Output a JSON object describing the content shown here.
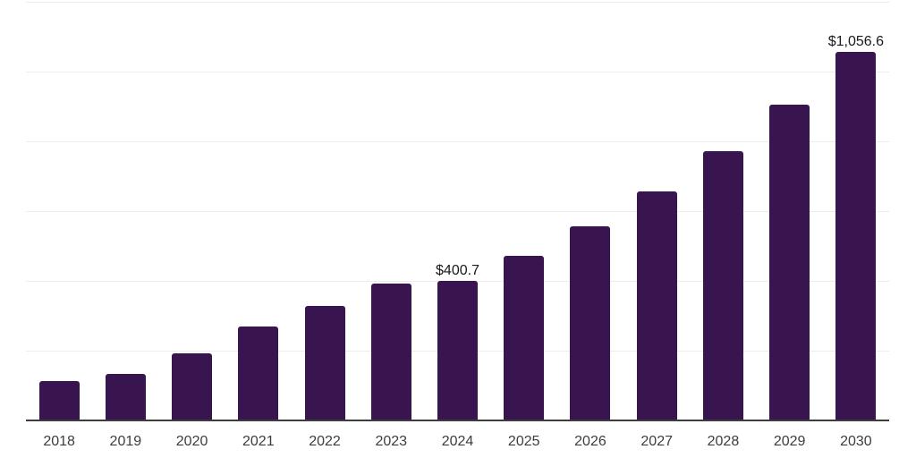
{
  "chart_data": {
    "type": "bar",
    "title": "",
    "xlabel": "",
    "ylabel": "",
    "categories": [
      "2018",
      "2019",
      "2020",
      "2021",
      "2022",
      "2023",
      "2024",
      "2025",
      "2026",
      "2027",
      "2028",
      "2029",
      "2030"
    ],
    "values": [
      112.5,
      133.0,
      191.8,
      268.5,
      327.4,
      391.3,
      400.7,
      473.1,
      557.5,
      657.3,
      772.4,
      905.4,
      1056.6
    ],
    "data_labels": {
      "2024": "$400.7",
      "2030": "$1,056.6"
    },
    "ylim": [
      0,
      1200
    ],
    "gridline_values": [
      200,
      400,
      600,
      800,
      1000,
      1200
    ],
    "grid": "horizontal-only",
    "legend_position": "none",
    "colors": {
      "bar": "#38154f",
      "gridline": "#ededed",
      "axis_line": "#3d3d3d",
      "tick_label": "#3d3d3d",
      "value_label": "#1a1a1a",
      "background": "#ffffff"
    }
  }
}
